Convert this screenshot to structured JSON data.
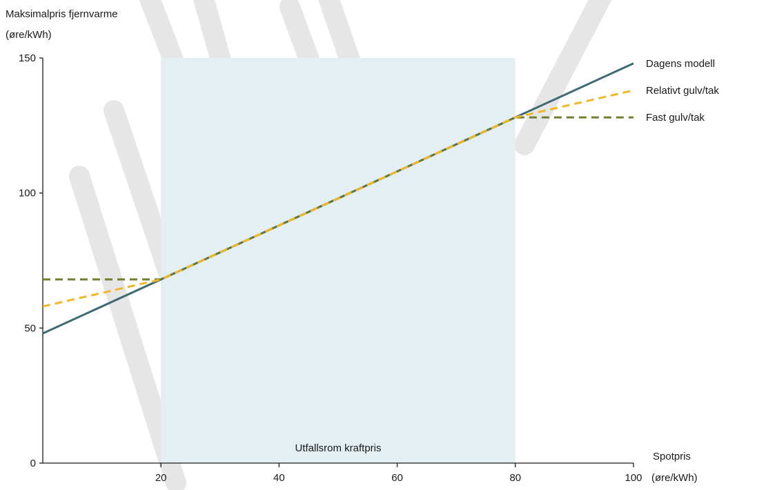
{
  "chart_data": {
    "type": "line",
    "title": "",
    "ylabel_lines": [
      "Maksimalpris fjernvarme",
      "(øre/kWh)"
    ],
    "xlabel_lines": [
      "Spotpris",
      "(øre/kWh)"
    ],
    "xlim": [
      0,
      100
    ],
    "ylim": [
      0,
      150
    ],
    "x_ticks": [
      20,
      40,
      60,
      80,
      100
    ],
    "y_ticks": [
      0,
      50,
      100,
      150
    ],
    "grid": false,
    "legend": "right-end-labels",
    "band": {
      "label": "Utfallsrom kraftpris",
      "x_start": 20,
      "x_end": 80,
      "color": "#e3eff2"
    },
    "series": [
      {
        "name": "Dagens modell",
        "style": "solid",
        "color": "#3f6a74",
        "x": [
          0,
          100
        ],
        "y": [
          48,
          148
        ]
      },
      {
        "name": "Relativt gulv/tak",
        "style": "dashed",
        "color": "#f0b724",
        "x": [
          0,
          20,
          80,
          100
        ],
        "y": [
          58,
          68,
          128,
          138
        ]
      },
      {
        "name": "Fast gulv/tak",
        "style": "dashed",
        "color": "#6e7f2e",
        "x": [
          0,
          20,
          80,
          100
        ],
        "y": [
          68,
          68,
          128,
          128
        ]
      }
    ]
  }
}
